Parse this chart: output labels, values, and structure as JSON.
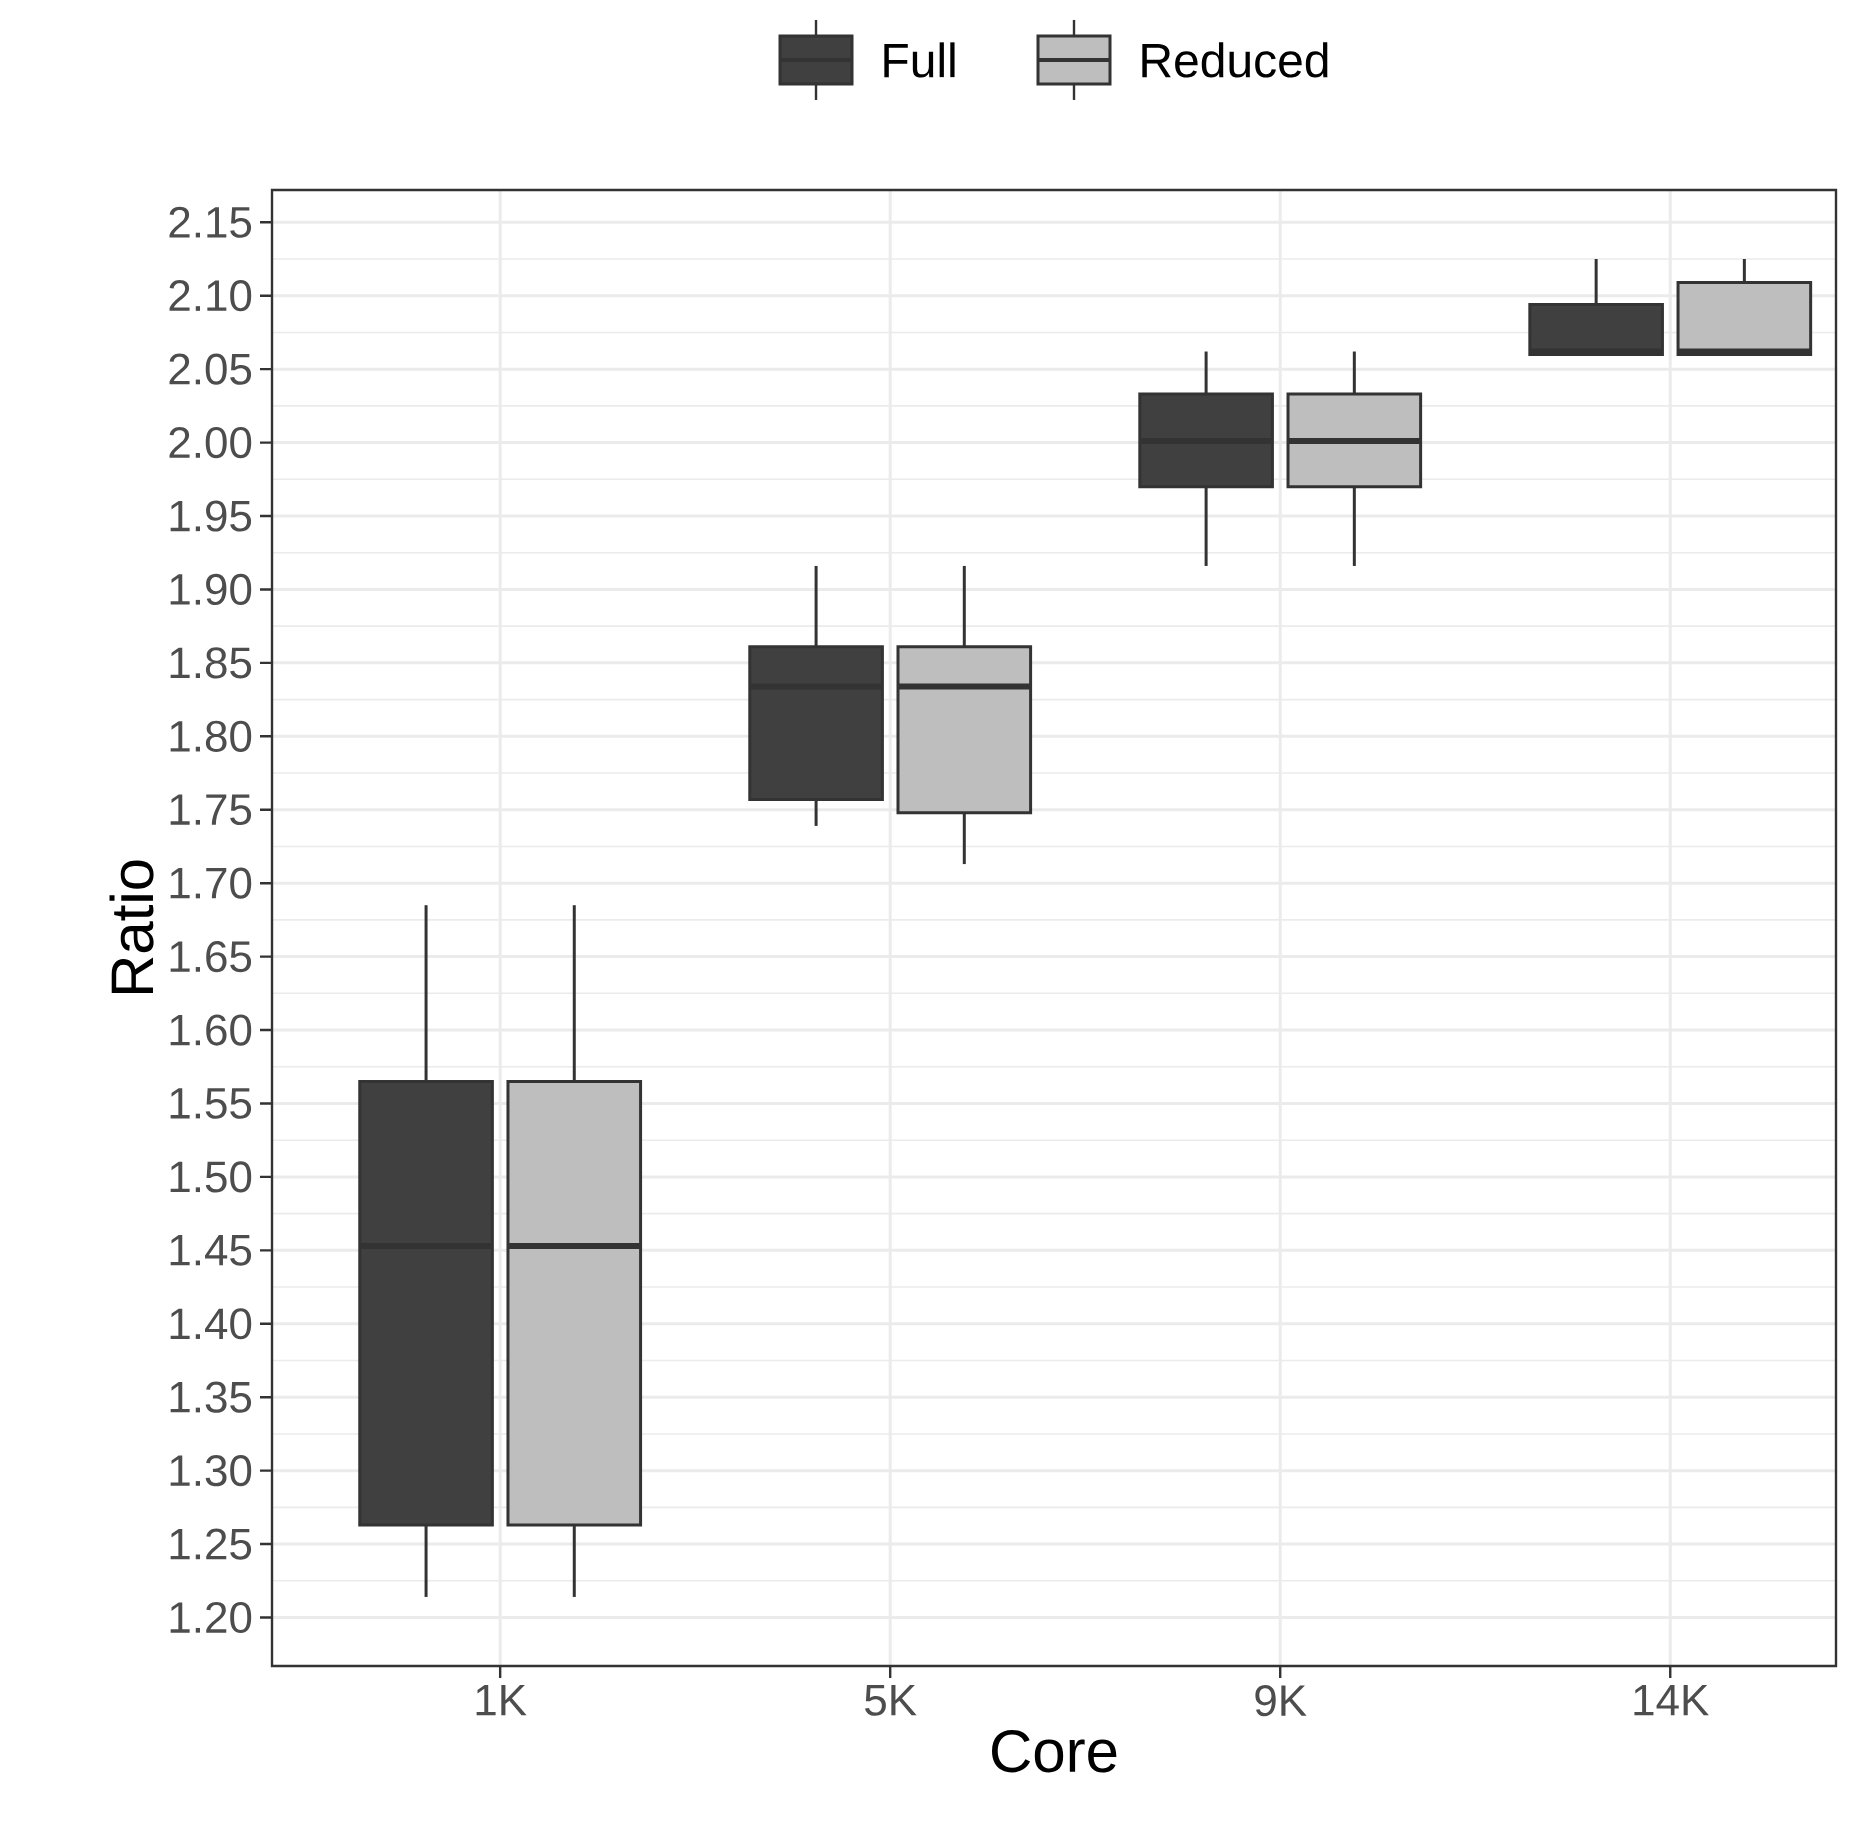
{
  "chart_data": {
    "type": "box",
    "xlabel": "Core",
    "ylabel": "Ratio",
    "categories": [
      "1K",
      "5K",
      "9K",
      "14K"
    ],
    "series": [
      {
        "name": "Full",
        "color": "#404040",
        "boxes": [
          {
            "low": 1.214,
            "q1": 1.263,
            "median": 1.453,
            "q3": 1.565,
            "high": 1.685
          },
          {
            "low": 1.739,
            "q1": 1.757,
            "median": 1.834,
            "q3": 1.861,
            "high": 1.916
          },
          {
            "low": 1.916,
            "q1": 1.97,
            "median": 2.001,
            "q3": 2.033,
            "high": 2.062
          },
          {
            "low": 2.06,
            "q1": 2.06,
            "median": 2.062,
            "q3": 2.094,
            "high": 2.125
          }
        ]
      },
      {
        "name": "Reduced",
        "color": "#bebebe",
        "boxes": [
          {
            "low": 1.214,
            "q1": 1.263,
            "median": 1.453,
            "q3": 1.565,
            "high": 1.685
          },
          {
            "low": 1.713,
            "q1": 1.748,
            "median": 1.834,
            "q3": 1.861,
            "high": 1.916
          },
          {
            "low": 1.916,
            "q1": 1.97,
            "median": 2.001,
            "q3": 2.033,
            "high": 2.062
          },
          {
            "low": 2.06,
            "q1": 2.06,
            "median": 2.062,
            "q3": 2.109,
            "high": 2.125
          }
        ]
      }
    ],
    "ylim": [
      1.167,
      2.172
    ],
    "yticks": [
      {
        "value": 1.2,
        "label": "1.20"
      },
      {
        "value": 1.25,
        "label": "1.25"
      },
      {
        "value": 1.3,
        "label": "1.30"
      },
      {
        "value": 1.35,
        "label": "1.35"
      },
      {
        "value": 1.4,
        "label": "1.40"
      },
      {
        "value": 1.45,
        "label": "1.45"
      },
      {
        "value": 1.5,
        "label": "1.50"
      },
      {
        "value": 1.55,
        "label": "1.55"
      },
      {
        "value": 1.6,
        "label": "1.60"
      },
      {
        "value": 1.65,
        "label": "1.65"
      },
      {
        "value": 1.7,
        "label": "1.70"
      },
      {
        "value": 1.75,
        "label": "1.75"
      },
      {
        "value": 1.8,
        "label": "1.80"
      },
      {
        "value": 1.85,
        "label": "1.85"
      },
      {
        "value": 1.9,
        "label": "1.90"
      },
      {
        "value": 1.95,
        "label": "1.95"
      },
      {
        "value": 2.0,
        "label": "2.00"
      },
      {
        "value": 2.05,
        "label": "2.05"
      },
      {
        "value": 2.1,
        "label": "2.10"
      },
      {
        "value": 2.15,
        "label": "2.15"
      }
    ],
    "grid": true,
    "legend": "top"
  }
}
